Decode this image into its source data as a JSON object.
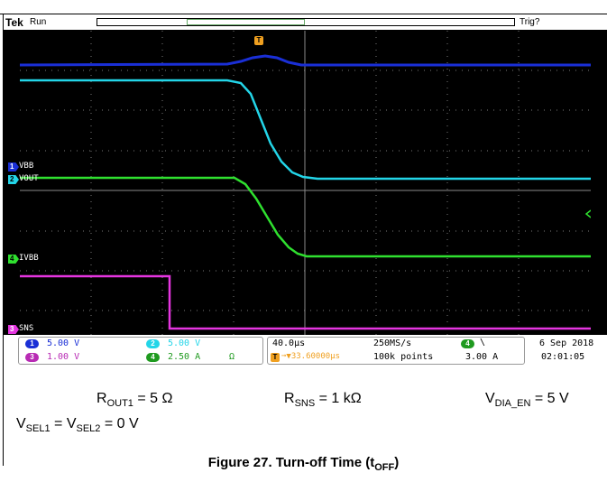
{
  "colors": {
    "ch1": "#1a2fd6",
    "ch2": "#23d5e8",
    "ch3": "#e535e0",
    "ch4": "#2fe02f",
    "trigger": "#f0a020",
    "grid": "#7a7a7a"
  },
  "status": {
    "brand": "Tek",
    "run_state": "Run",
    "trigger_state": "Trig?",
    "trigger_marker": "T"
  },
  "channels": {
    "ch1": {
      "number": "1",
      "label": "VBB",
      "scale": "5.00 V"
    },
    "ch2": {
      "number": "2",
      "label": "VOUT",
      "scale": "5.00 V"
    },
    "ch3": {
      "number": "3",
      "label": "SNS",
      "scale": "1.00 V"
    },
    "ch4": {
      "number": "4",
      "label": "IVBB",
      "scale": "2.50 A",
      "unit_mark": "Ω"
    }
  },
  "timebase": {
    "horizontal": "40.0µs",
    "position": "➞▼33.60000µs",
    "sample_rate": "250MS/s",
    "record_length": "100k points"
  },
  "trigger": {
    "source": "4",
    "slope": "\\",
    "level": "3.00 A"
  },
  "datetime": {
    "date": "6 Sep 2018",
    "time": "02:01:05"
  },
  "conditions": {
    "rout1": {
      "base": "R",
      "sub": "OUT1",
      "rest": " = 5 Ω"
    },
    "rsns": {
      "base": "R",
      "sub": "SNS",
      "rest": " = 1 kΩ"
    },
    "vdia": {
      "base": "V",
      "sub": "DIA_EN",
      "rest": " = 5 V"
    },
    "vsel": {
      "base1": "V",
      "sub1": "SEL1",
      "mid": " = V",
      "sub2": "SEL2",
      "rest": " = 0 V"
    }
  },
  "figure": {
    "title": "Figure 27. Turn-off Time (t",
    "title_sub": "OFF",
    "title_end": ")"
  }
}
